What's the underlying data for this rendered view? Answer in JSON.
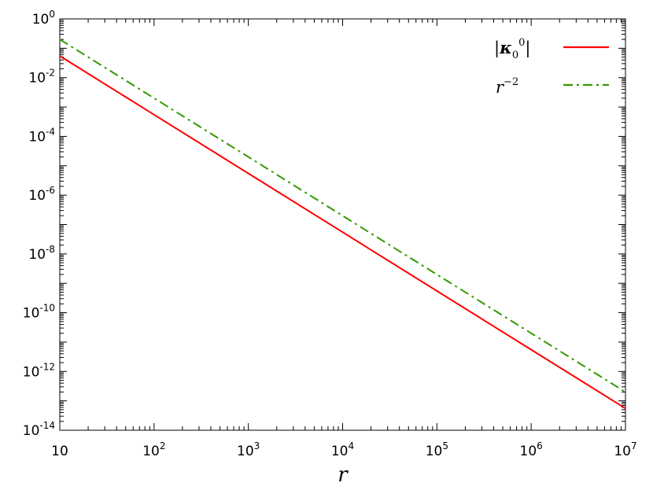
{
  "chart_data": {
    "type": "line",
    "title": "",
    "xlabel": "r",
    "ylabel": "",
    "xscale": "log",
    "yscale": "log",
    "xlim": [
      10,
      10000000
    ],
    "ylim": [
      1e-14,
      1
    ],
    "grid": false,
    "legend_position": "top-right",
    "x_ticks": [
      {
        "base": "10",
        "exp": ""
      },
      {
        "base": "10",
        "exp": "2"
      },
      {
        "base": "10",
        "exp": "3"
      },
      {
        "base": "10",
        "exp": "4"
      },
      {
        "base": "10",
        "exp": "5"
      },
      {
        "base": "10",
        "exp": "6"
      },
      {
        "base": "10",
        "exp": "7"
      }
    ],
    "y_ticks": [
      {
        "base": "10",
        "exp": "0"
      },
      {
        "base": "10",
        "exp": "-2"
      },
      {
        "base": "10",
        "exp": "-4"
      },
      {
        "base": "10",
        "exp": "-6"
      },
      {
        "base": "10",
        "exp": "-8"
      },
      {
        "base": "10",
        "exp": "-10"
      },
      {
        "base": "10",
        "exp": "-12"
      },
      {
        "base": "10",
        "exp": "-14"
      }
    ],
    "series": [
      {
        "name": "|κ₀⁰|",
        "color": "#ff0000",
        "style": "solid",
        "x": [
          10,
          100,
          1000,
          10000,
          100000,
          1000000,
          10000000
        ],
        "y": [
          0.055,
          0.00055,
          5.5e-06,
          5.5e-08,
          5.5e-10,
          5.5e-12,
          5.5e-14
        ]
      },
      {
        "name": "r⁻²",
        "color": "#339900",
        "style": "dash-dot",
        "x": [
          10,
          100,
          1000,
          10000,
          100000,
          1000000,
          10000000
        ],
        "y": [
          0.2,
          0.002,
          2e-05,
          2e-07,
          2e-09,
          2e-11,
          2e-13
        ]
      }
    ]
  }
}
